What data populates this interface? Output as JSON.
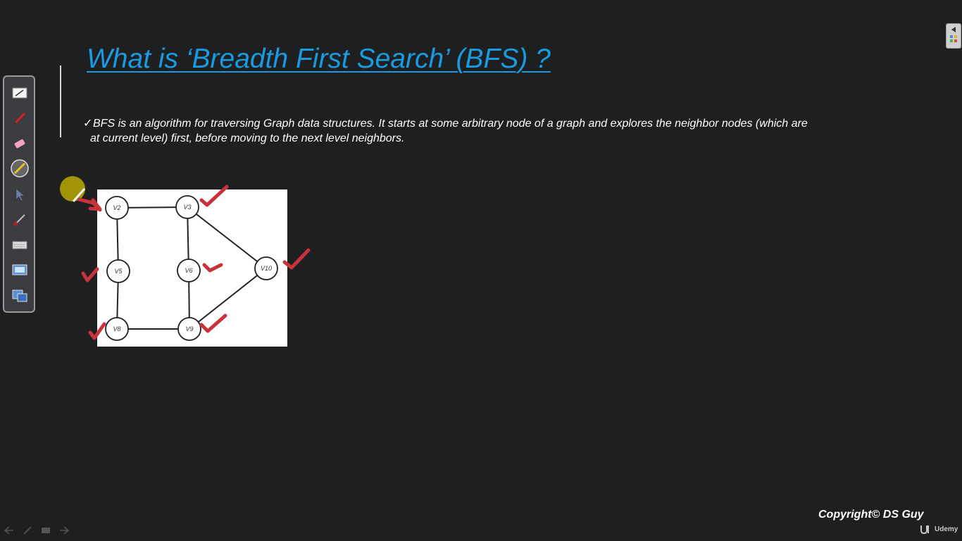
{
  "slide": {
    "title": "What is ‘Breadth First Search’ (BFS) ?",
    "bullet_check": "✓",
    "bullet_line1": "BFS is an algorithm for traversing Graph data structures. It starts at some arbitrary node of a graph and explores the neighbor nodes (which are",
    "bullet_line2": "at current level) first, before moving to the next level neighbors."
  },
  "graph": {
    "nodes": [
      "V2",
      "V3",
      "V5",
      "V6",
      "V8",
      "V9",
      "V10"
    ],
    "edges": [
      [
        "V2",
        "V3"
      ],
      [
        "V2",
        "V5"
      ],
      [
        "V3",
        "V6"
      ],
      [
        "V3",
        "V10"
      ],
      [
        "V5",
        "V8"
      ],
      [
        "V6",
        "V9"
      ],
      [
        "V8",
        "V9"
      ],
      [
        "V9",
        "V10"
      ]
    ],
    "annotation_color": "#c8323a"
  },
  "toolbar": {
    "tools": [
      "whiteboard-icon",
      "pen-icon",
      "eraser-icon",
      "highlighter-icon",
      "pointer-icon",
      "brush-icon",
      "keyboard-icon",
      "screen-capture-icon",
      "screen-share-icon"
    ]
  },
  "footer": {
    "copyright": "Copyright© DS Guy",
    "brand": "Udemy"
  },
  "colors": {
    "background": "#1d1f21",
    "title": "#1a9be0",
    "text": "#ffffff"
  }
}
